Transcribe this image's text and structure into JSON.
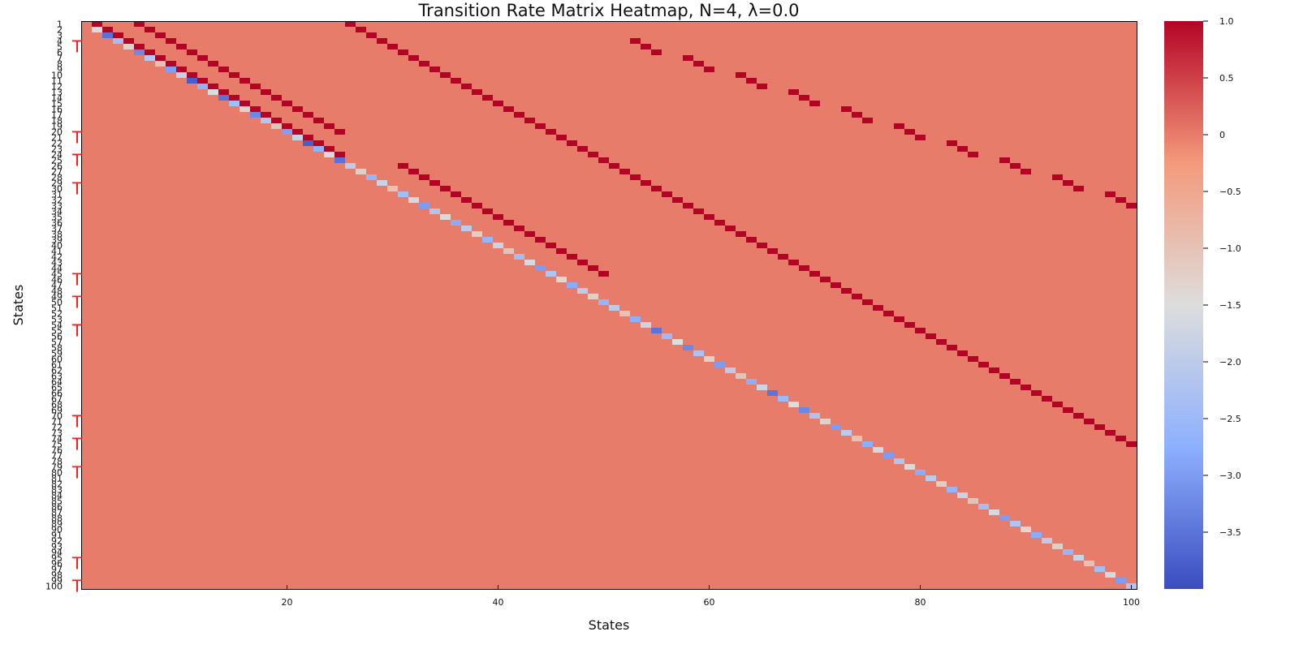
{
  "chart_data": {
    "type": "heatmap",
    "title": "Transition Rate Matrix Heatmap, N=4, λ=0.0",
    "xlabel": "States",
    "ylabel": "States",
    "n_states": 100,
    "x_ticks": [
      20,
      40,
      60,
      80,
      100
    ],
    "y_tick_labels": [
      "1",
      "2",
      "3",
      "4",
      "5",
      "6",
      "7",
      "8",
      "9",
      "10",
      "11",
      "12",
      "13",
      "14",
      "15",
      "16",
      "17",
      "18",
      "19",
      "20",
      "21",
      "22",
      "23",
      "24",
      "25",
      "26",
      "27",
      "28",
      "29",
      "30",
      "31",
      "32",
      "33",
      "34",
      "35",
      "36",
      "37",
      "38",
      "39",
      "40",
      "41",
      "42",
      "43",
      "44",
      "45",
      "46",
      "47",
      "48",
      "49",
      "50",
      "51",
      "52",
      "53",
      "54",
      "55",
      "56",
      "57",
      "58",
      "59",
      "60",
      "61",
      "62",
      "63",
      "64",
      "65",
      "66",
      "67",
      "68",
      "69",
      "70",
      "71",
      "72",
      "73",
      "74",
      "75",
      "76",
      "77",
      "78",
      "79",
      "80",
      "81",
      "82",
      "83",
      "84",
      "85",
      "86",
      "87",
      "88",
      "89",
      "90",
      "91",
      "92",
      "93",
      "94",
      "95",
      "96",
      "97",
      "98",
      "99",
      "100"
    ],
    "marked_rows": [
      5,
      21,
      25,
      30,
      46,
      50,
      55,
      71,
      75,
      80,
      96,
      100
    ],
    "marker_symbol": "T",
    "colorbar": {
      "min": -4.0,
      "max": 1.0,
      "ticks": [
        {
          "value": 1.0,
          "label": "1.0"
        },
        {
          "value": 0.5,
          "label": "0.5"
        },
        {
          "value": 0.0,
          "label": "0"
        },
        {
          "value": -0.5,
          "label": "−0.5"
        },
        {
          "value": -1.0,
          "label": "−1.0"
        },
        {
          "value": -1.5,
          "label": "−1.5"
        },
        {
          "value": -2.0,
          "label": "−2.0"
        },
        {
          "value": -2.5,
          "label": "−2.5"
        },
        {
          "value": -3.0,
          "label": "−3.0"
        },
        {
          "value": -3.5,
          "label": "−3.5"
        }
      ]
    },
    "colorscale": "coolwarm",
    "background_value": 0.0,
    "cells": [
      {
        "block_rows": [
          2,
          25
        ],
        "block_cols": [
          2,
          25
        ],
        "pattern": "diagonal",
        "value_range": [
          -3.8,
          -1.0
        ]
      },
      {
        "block_rows": [
          1,
          25
        ],
        "block_cols": [
          2,
          25
        ],
        "pattern": "superdiagonal",
        "value": 1.0
      },
      {
        "block_rows": [
          1,
          20
        ],
        "block_cols": [
          6,
          25
        ],
        "pattern": "offset+5",
        "value": 1.0
      },
      {
        "block_rows": [
          26,
          50
        ],
        "block_cols": [
          26,
          50
        ],
        "pattern": "diagonal",
        "value_range": [
          -3.0,
          -1.0
        ]
      },
      {
        "block_rows": [
          26,
          50
        ],
        "block_cols": [
          31,
          50
        ],
        "pattern": "offset+5",
        "value": 1.0
      },
      {
        "block_rows": [
          51,
          75
        ],
        "block_cols": [
          51,
          75
        ],
        "pattern": "diagonal",
        "value_range": [
          -3.5,
          -1.0
        ]
      },
      {
        "block_rows": [
          76,
          100
        ],
        "block_cols": [
          76,
          100
        ],
        "pattern": "diagonal",
        "value_range": [
          -3.0,
          -1.0
        ]
      },
      {
        "block_rows": [
          1,
          25
        ],
        "block_cols": [
          26,
          50
        ],
        "pattern": "offset+25",
        "value": 1.0
      },
      {
        "block_rows": [
          26,
          50
        ],
        "block_cols": [
          51,
          75
        ],
        "pattern": "offset+25",
        "value": 1.0
      },
      {
        "block_rows": [
          51,
          75
        ],
        "block_cols": [
          76,
          100
        ],
        "pattern": "offset+25",
        "value": 1.0
      },
      {
        "block_rows": [
          1,
          100
        ],
        "block_cols": [
          51,
          100
        ],
        "pattern": "sparse-triples",
        "value": 1.0
      }
    ]
  }
}
